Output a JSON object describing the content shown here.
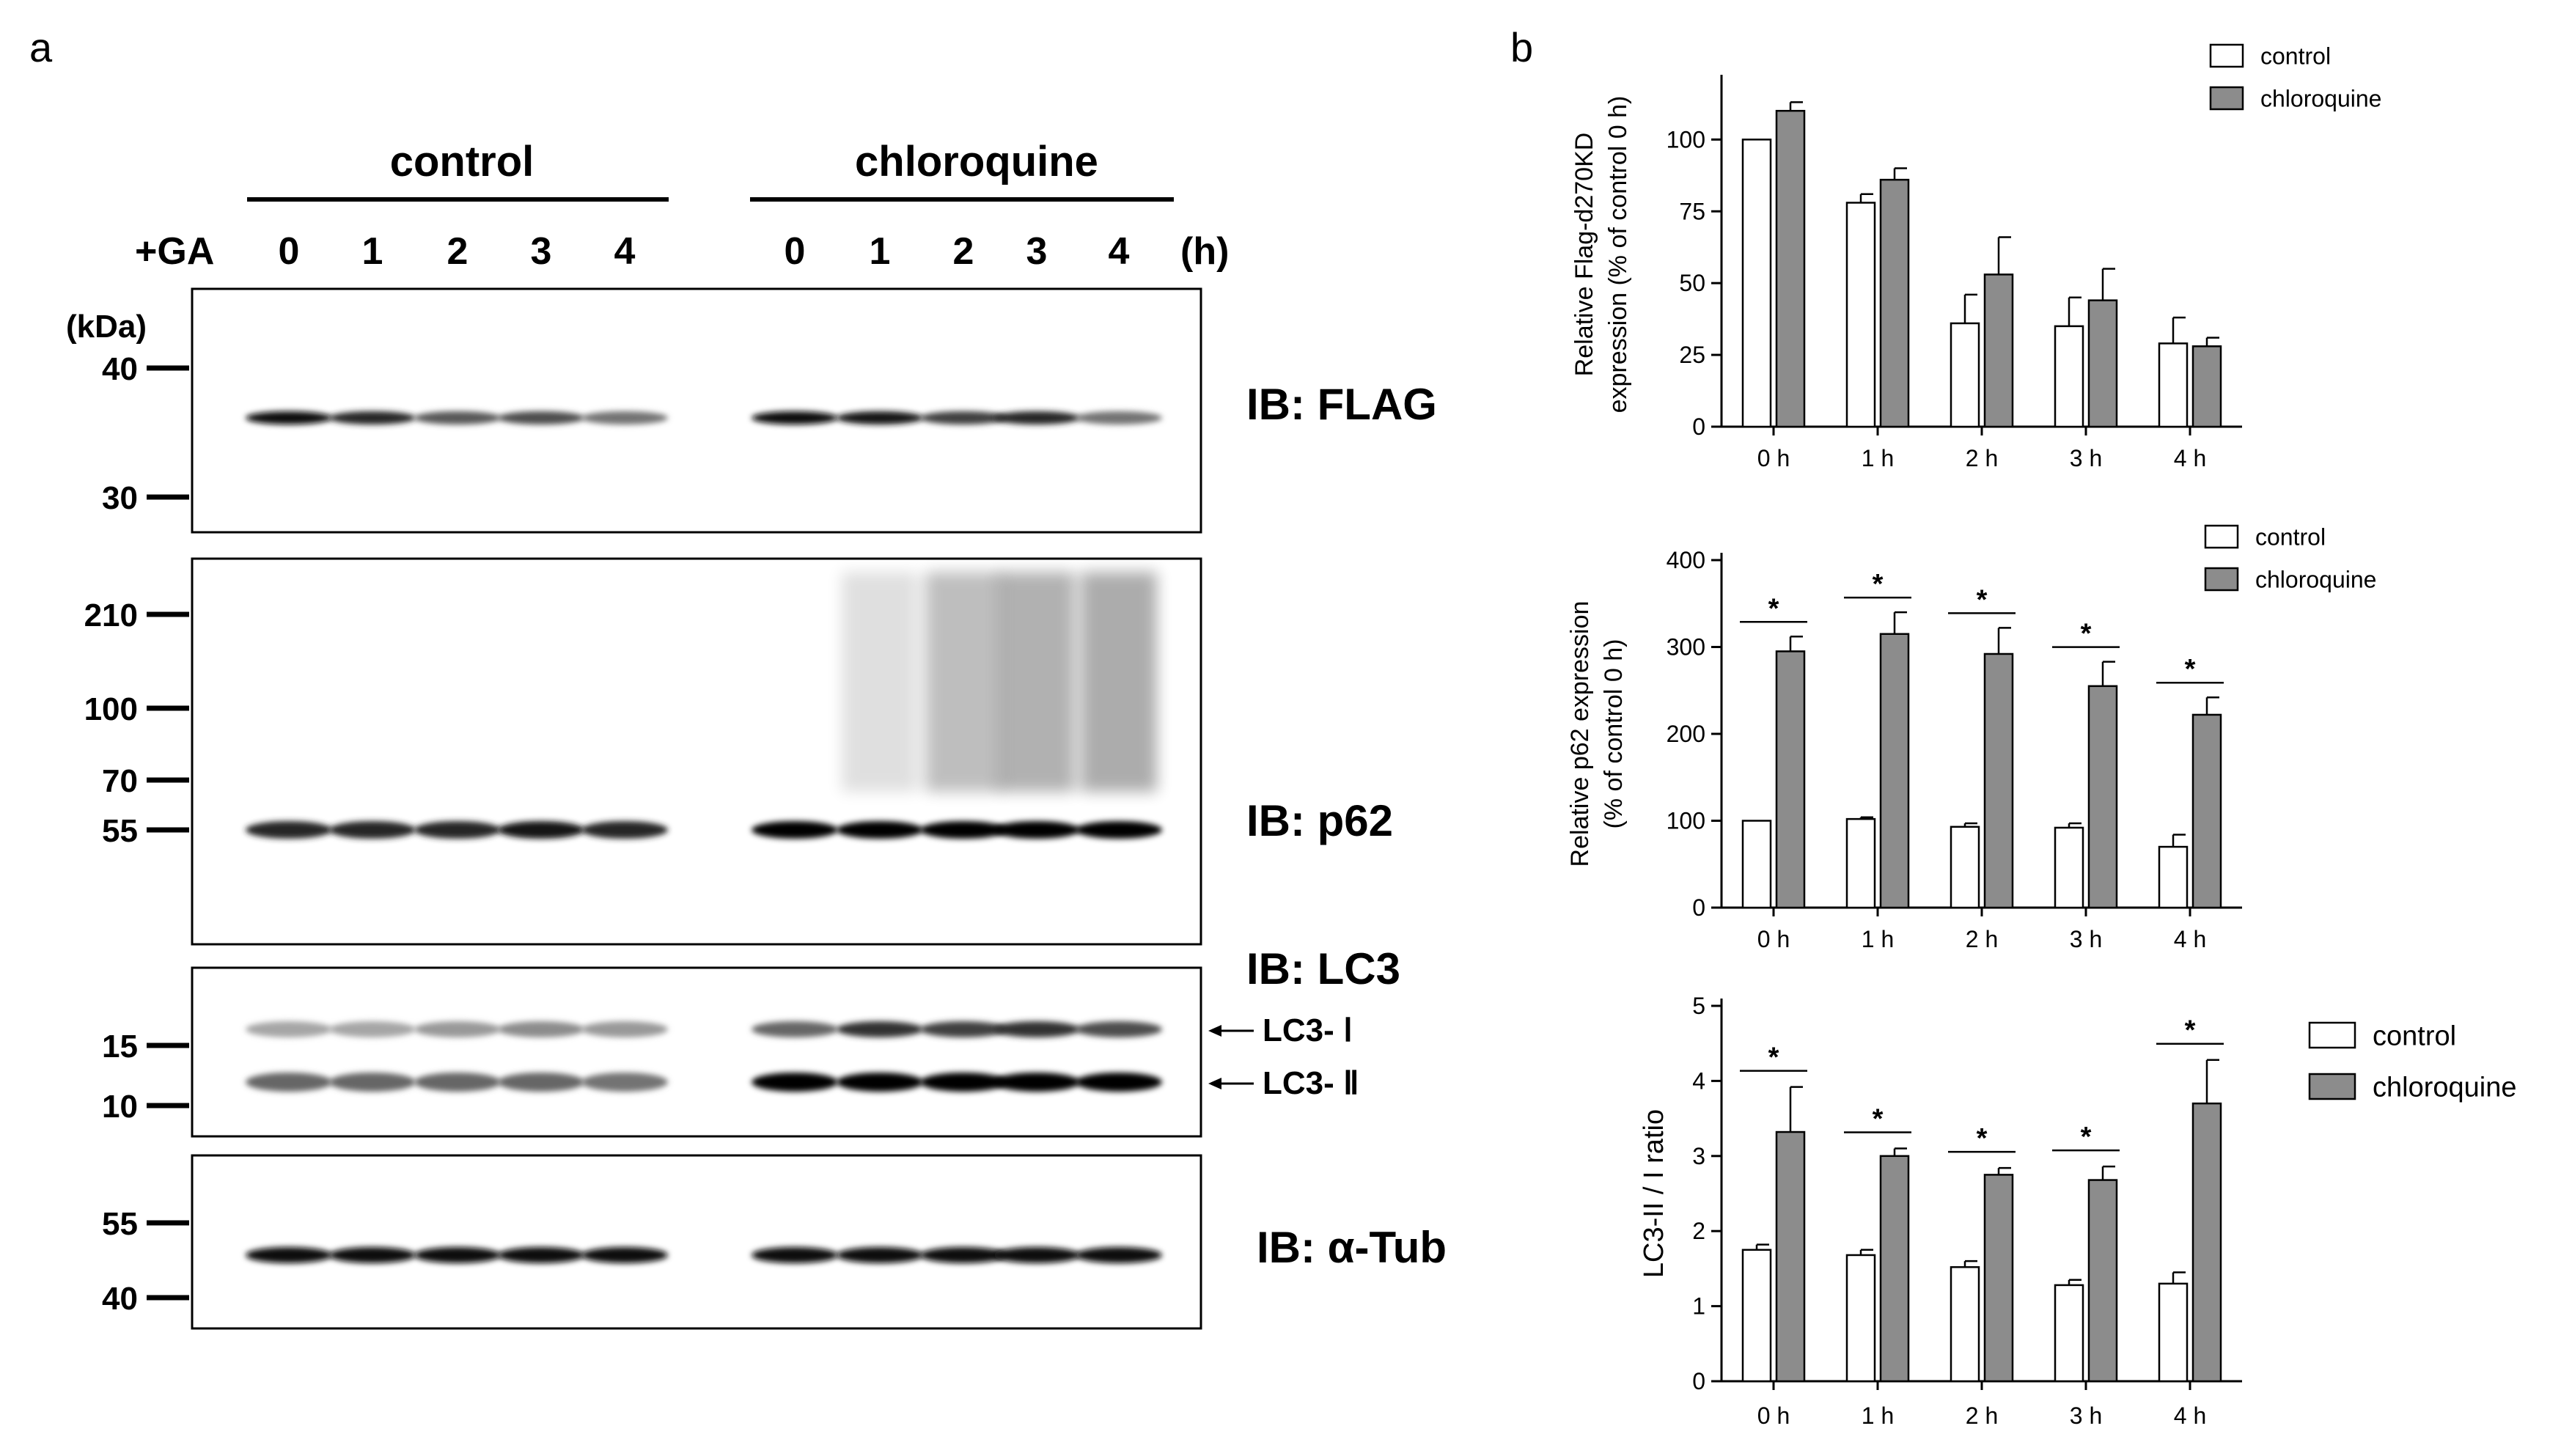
{
  "panel_a": {
    "label": "a",
    "groups": [
      "control",
      "chloroquine"
    ],
    "ga_label": "+GA",
    "timepoints": [
      "0",
      "1",
      "2",
      "3",
      "4"
    ],
    "time_unit": "(h)",
    "kda_label": "(kDa)",
    "blots": [
      {
        "ib": "IB: FLAG",
        "markers": [
          "40",
          "30"
        ]
      },
      {
        "ib": "IB: p62",
        "markers": [
          "210",
          "100",
          "70",
          "55"
        ]
      },
      {
        "ib": "IB: LC3",
        "markers": [
          "15",
          "10"
        ],
        "arrows": [
          "LC3- Ⅰ",
          "LC3- Ⅱ"
        ]
      },
      {
        "ib": "IB: α-Tub",
        "markers": [
          "55",
          "40"
        ]
      }
    ],
    "band_intensity": {
      "flag_control": [
        0.95,
        0.85,
        0.65,
        0.7,
        0.55
      ],
      "flag_chloroquine": [
        0.95,
        0.9,
        0.75,
        0.85,
        0.55
      ],
      "p62_control": [
        0.85,
        0.85,
        0.85,
        0.9,
        0.85
      ],
      "p62_chloroquine": [
        1.0,
        1.0,
        1.0,
        1.0,
        1.0
      ],
      "lc3i_control": [
        0.35,
        0.35,
        0.4,
        0.45,
        0.4
      ],
      "lc3i_chloroquine": [
        0.6,
        0.8,
        0.75,
        0.8,
        0.7
      ],
      "lc3ii_control": [
        0.6,
        0.6,
        0.6,
        0.6,
        0.55
      ],
      "lc3ii_chloroquine": [
        1.0,
        1.0,
        1.0,
        1.0,
        1.0
      ],
      "tub_control": [
        0.95,
        0.95,
        0.95,
        0.95,
        0.95
      ],
      "tub_chloroquine": [
        0.95,
        0.95,
        0.95,
        0.95,
        0.95
      ]
    }
  },
  "panel_b": {
    "label": "b",
    "legend": [
      "control",
      "chloroquine"
    ],
    "colors": {
      "control": "#ffffff",
      "chloroquine": "#8c8c8c",
      "axis": "#000000"
    }
  },
  "chart_data": [
    {
      "type": "bar",
      "categories": [
        "0 h",
        "1 h",
        "2 h",
        "3 h",
        "4 h"
      ],
      "ylabel": [
        "Relative Flag-d270KD",
        "expression (% of control 0 h)"
      ],
      "ylim": [
        0,
        120
      ],
      "yticks": [
        "0",
        "25",
        "50",
        "75",
        "100"
      ],
      "series": [
        {
          "name": "control",
          "values": [
            100,
            78,
            36,
            35,
            29
          ],
          "errors": [
            0,
            3,
            10,
            10,
            9
          ]
        },
        {
          "name": "chloroquine",
          "values": [
            110,
            86,
            53,
            44,
            28
          ],
          "errors": [
            3,
            4,
            13,
            11,
            3
          ]
        }
      ],
      "significance": []
    },
    {
      "type": "bar",
      "categories": [
        "0 h",
        "1 h",
        "2 h",
        "3 h",
        "4 h"
      ],
      "ylabel": [
        "Relative p62 expression",
        "(% of control 0 h)"
      ],
      "ylim": [
        0,
        400
      ],
      "yticks": [
        "0",
        "100",
        "200",
        "300",
        "400"
      ],
      "series": [
        {
          "name": "control",
          "values": [
            100,
            102,
            93,
            92,
            70
          ],
          "errors": [
            0,
            2,
            4,
            5,
            14
          ]
        },
        {
          "name": "chloroquine",
          "values": [
            295,
            315,
            292,
            255,
            222
          ],
          "errors": [
            17,
            25,
            30,
            28,
            20
          ]
        }
      ],
      "significance": [
        "*",
        "*",
        "*",
        "*",
        "*"
      ]
    },
    {
      "type": "bar",
      "categories": [
        "0 h",
        "1 h",
        "2 h",
        "3 h",
        "4 h"
      ],
      "ylabel": [
        "LC3-II / I ratio"
      ],
      "ylim": [
        0,
        5
      ],
      "yticks": [
        "0",
        "1",
        "2",
        "3",
        "4",
        "5"
      ],
      "series": [
        {
          "name": "control",
          "values": [
            1.75,
            1.68,
            1.52,
            1.28,
            1.3
          ],
          "errors": [
            0.07,
            0.07,
            0.08,
            0.07,
            0.15
          ]
        },
        {
          "name": "chloroquine",
          "values": [
            3.32,
            3.0,
            2.75,
            2.68,
            3.7
          ],
          "errors": [
            0.6,
            0.1,
            0.09,
            0.18,
            0.58
          ]
        }
      ],
      "significance": [
        "*",
        "*",
        "*",
        "*",
        "*"
      ]
    }
  ]
}
